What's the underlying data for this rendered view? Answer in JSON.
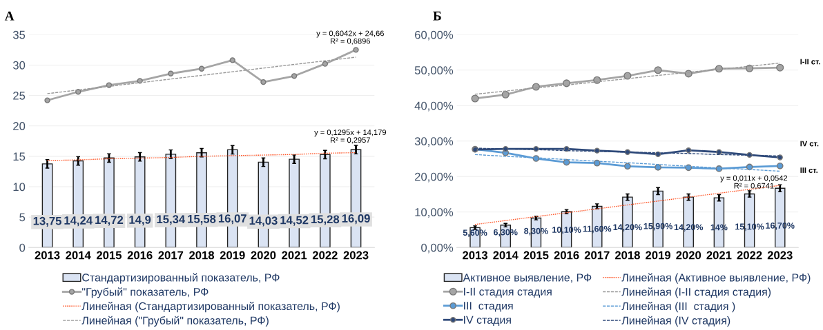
{
  "chart_data": [
    {
      "type": "bar",
      "title": "А",
      "categories": [
        "2013",
        "2014",
        "2015",
        "2016",
        "2017",
        "2018",
        "2019",
        "2020",
        "2021",
        "2022",
        "2023"
      ],
      "ylim": [
        0,
        35
      ],
      "yticks": [
        0,
        5,
        10,
        15,
        20,
        25,
        30,
        35
      ],
      "grid": "y",
      "legend": "bottom",
      "series": [
        {
          "name": "Стандартизированный показатель, РФ",
          "color": "#dae3f3",
          "values": [
            13.75,
            14.24,
            14.72,
            14.9,
            15.34,
            15.58,
            16.07,
            14.03,
            14.52,
            15.28,
            16.09
          ],
          "errors": [
            0.7,
            0.7,
            0.7,
            0.7,
            0.7,
            0.7,
            0.7,
            0.7,
            0.7,
            0.7,
            0.7
          ],
          "value_labels": [
            "13,75",
            "14,24",
            "14,72",
            "14,9",
            "15,34",
            "15,58",
            "16,07",
            "14,03",
            "14,52",
            "15,28",
            "16,09"
          ]
        },
        {
          "type": "line",
          "name": "\"Грубый\" показатель, РФ",
          "color": "#a5a5a5",
          "marker": "circle",
          "values": [
            24.2,
            25.6,
            26.7,
            27.4,
            28.6,
            29.4,
            30.8,
            27.2,
            28.2,
            30.2,
            32.5
          ]
        },
        {
          "type": "line",
          "name": "Линейная (Стандартизированный показатель, РФ)",
          "color": "#ff4f1f",
          "line_style": "dotted",
          "values": [
            14.3,
            14.4,
            14.6,
            14.7,
            14.8,
            15.0,
            15.1,
            15.2,
            15.3,
            15.5,
            15.6
          ]
        },
        {
          "type": "line",
          "name": "Линейная (\"Грубый\" показатель, РФ)",
          "color": "#999999",
          "line_style": "dashed",
          "values": [
            25.3,
            25.9,
            26.5,
            27.1,
            27.7,
            28.3,
            28.9,
            29.5,
            30.1,
            30.7,
            31.3
          ]
        }
      ],
      "annotations": [
        "y = 0,6042x + 24,66\nR² = 0,6896",
        "y = 0,1295x + 14,179\nR² = 0,2957"
      ]
    },
    {
      "type": "bar",
      "title": "Б",
      "categories": [
        "2013",
        "2014",
        "2015",
        "2016",
        "2017",
        "2018",
        "2019",
        "2020",
        "2021",
        "2022",
        "2023"
      ],
      "ylim": [
        0,
        60
      ],
      "yticks": [
        {
          "value": 0,
          "label": "0,00%"
        },
        {
          "value": 10,
          "label": "10,00%"
        },
        {
          "value": 20,
          "label": "20,00%"
        },
        {
          "value": 30,
          "label": "30,00%"
        },
        {
          "value": 40,
          "label": "40,00%"
        },
        {
          "value": 50,
          "label": "50,00%"
        },
        {
          "value": 60,
          "label": "60,00%"
        }
      ],
      "grid": "y",
      "legend": "bottom",
      "series": [
        {
          "name": "Активное выявление, РФ",
          "color": "#dae3f3",
          "values": [
            5.6,
            6.3,
            8.3,
            10.1,
            11.6,
            14.2,
            15.9,
            14.2,
            14,
            15.1,
            16.7
          ],
          "errors": [
            0.5,
            0.5,
            0.5,
            0.6,
            0.7,
            0.9,
            1.0,
            0.9,
            0.9,
            0.9,
            1.0
          ],
          "value_labels": [
            "5,60%",
            "6,30%",
            "8,30%",
            "10,10%",
            "11,60%",
            "14,20%",
            "15,90%",
            "14,20%",
            "14%",
            "15,10%",
            "16,70%"
          ]
        },
        {
          "type": "line",
          "name": "I-II стадия стадия",
          "color": "#a5a5a5",
          "marker": "circle",
          "values": [
            42.0,
            43.1,
            45.3,
            46.3,
            47.2,
            48.4,
            50.0,
            49.0,
            50.4,
            50.5,
            50.7
          ]
        },
        {
          "type": "line",
          "name": "III  стадия",
          "color": "#5b9bd5",
          "marker": "circle",
          "values": [
            27.7,
            26.7,
            25.1,
            24.0,
            23.8,
            22.9,
            22.6,
            22.5,
            22.2,
            22.7,
            23.0
          ]
        },
        {
          "type": "line",
          "name": "IV стадия",
          "color": "#2f4a7a",
          "marker": "circle",
          "values": [
            27.6,
            27.8,
            27.8,
            27.8,
            27.3,
            26.9,
            26.3,
            27.4,
            26.9,
            26.1,
            25.4
          ]
        },
        {
          "type": "line",
          "name": "Линейная (Активное выявление, РФ)",
          "color": "#ff4f1f",
          "line_style": "dotted",
          "values": [
            6.5,
            7.6,
            8.7,
            9.8,
            10.9,
            12.0,
            13.1,
            14.2,
            15.3,
            16.4,
            17.5
          ]
        },
        {
          "type": "line",
          "name": "Линейная (I-II стадия стадия)",
          "color": "#999999",
          "line_style": "dashed",
          "values": [
            43.2,
            44.1,
            45.0,
            45.8,
            46.7,
            47.6,
            48.5,
            49.4,
            50.2,
            51.1,
            52.0
          ]
        },
        {
          "type": "line",
          "name": "Линейная (III  стадия )",
          "color": "#5b9bd5",
          "line_style": "dashed",
          "values": [
            26.2,
            25.7,
            25.3,
            24.8,
            24.3,
            23.9,
            23.4,
            22.9,
            22.4,
            22.0,
            21.5
          ]
        },
        {
          "type": "line",
          "name": "Линейная (IV стадия)",
          "color": "#2f4a7a",
          "line_style": "dashed",
          "values": [
            28.0,
            27.8,
            27.6,
            27.3,
            27.1,
            26.9,
            26.7,
            26.5,
            26.2,
            26.0,
            25.8
          ]
        }
      ],
      "annotations": [
        "y = 0,011x + 0,0542\nR² = 0,6741",
        "I-II ст.",
        "IV ст.",
        "III ст."
      ]
    }
  ]
}
